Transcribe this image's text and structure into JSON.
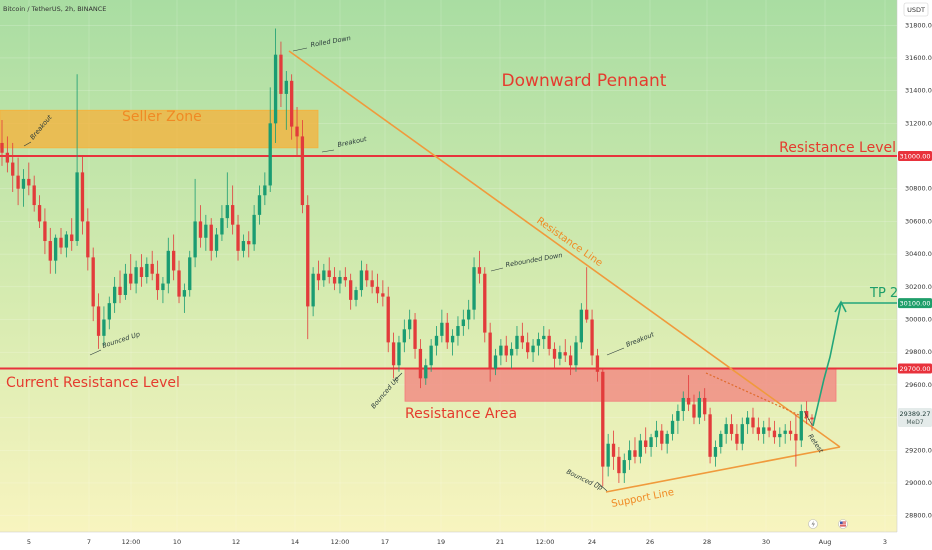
{
  "header": {
    "symbol_line": "Bitcoin / TetherUS, 2h, BINANCE",
    "currency": "USDT"
  },
  "price_tag": {
    "price": "29389.27",
    "countdown": "MeD7"
  },
  "chart_data": {
    "type": "candlestick",
    "x_ticks": [
      "5",
      "7",
      "12:00",
      "10",
      "12",
      "14",
      "12:00",
      "17",
      "19",
      "21",
      "12:00",
      "24",
      "26",
      "28",
      "30",
      "Aug",
      "3"
    ],
    "y_ticks": [
      28800,
      29000,
      29200,
      29400,
      29600,
      29800,
      30000,
      30200,
      30400,
      30600,
      30800,
      31000,
      31200,
      31400,
      31600,
      31800
    ],
    "ylim": [
      28700,
      31930
    ],
    "levels": [
      {
        "name": "Resistance Level",
        "price": 31000,
        "tag": "31000.00",
        "color": "#e8323c"
      },
      {
        "name": "Current Resistance Level",
        "price": 29700,
        "tag": "29700.00",
        "color": "#e8323c"
      },
      {
        "name": "TP 2",
        "price": 30100,
        "tag": "30100.00",
        "color": "#1e9e6a"
      }
    ],
    "zones": [
      {
        "label": "Seller Zone",
        "from": 31050,
        "to": 31280,
        "color": "#f5b23c"
      },
      {
        "label": "Resistance Area",
        "from": 29500,
        "to": 29700,
        "color": "#f47b7b"
      }
    ],
    "title": "Downward Pennant",
    "line_labels": [
      "Resistance Line",
      "Support Line"
    ],
    "annotations": [
      "Breakout",
      "Breakout",
      "Rolled Down",
      "Bounced Up",
      "Rebounded Down",
      "Bounced Up",
      "Breakout",
      "Bounced Up",
      "Retest"
    ],
    "candles": [
      {
        "o": 31080,
        "h": 31220,
        "l": 30940,
        "c": 31020
      },
      {
        "o": 31020,
        "h": 31120,
        "l": 30900,
        "c": 30960
      },
      {
        "o": 30960,
        "h": 31080,
        "l": 30780,
        "c": 30880
      },
      {
        "o": 30880,
        "h": 30990,
        "l": 30700,
        "c": 30800
      },
      {
        "o": 30800,
        "h": 30920,
        "l": 30690,
        "c": 30860
      },
      {
        "o": 30860,
        "h": 30960,
        "l": 30760,
        "c": 30820
      },
      {
        "o": 30820,
        "h": 30880,
        "l": 30660,
        "c": 30700
      },
      {
        "o": 30700,
        "h": 30760,
        "l": 30560,
        "c": 30600
      },
      {
        "o": 30600,
        "h": 30680,
        "l": 30400,
        "c": 30480
      },
      {
        "o": 30480,
        "h": 30560,
        "l": 30280,
        "c": 30360
      },
      {
        "o": 30360,
        "h": 30520,
        "l": 30280,
        "c": 30500
      },
      {
        "o": 30500,
        "h": 30560,
        "l": 30400,
        "c": 30440
      },
      {
        "o": 30440,
        "h": 30540,
        "l": 30380,
        "c": 30520
      },
      {
        "o": 30520,
        "h": 30620,
        "l": 30420,
        "c": 30480
      },
      {
        "o": 30480,
        "h": 31500,
        "l": 30450,
        "c": 30900
      },
      {
        "o": 30900,
        "h": 31000,
        "l": 30520,
        "c": 30600
      },
      {
        "o": 30600,
        "h": 30680,
        "l": 30300,
        "c": 30380
      },
      {
        "o": 30380,
        "h": 30440,
        "l": 29990,
        "c": 30080
      },
      {
        "o": 30080,
        "h": 30160,
        "l": 29820,
        "c": 29900
      },
      {
        "o": 29900,
        "h": 30080,
        "l": 29840,
        "c": 30000
      },
      {
        "o": 30000,
        "h": 30140,
        "l": 29940,
        "c": 30100
      },
      {
        "o": 30100,
        "h": 30260,
        "l": 30040,
        "c": 30200
      },
      {
        "o": 30200,
        "h": 30300,
        "l": 30100,
        "c": 30150
      },
      {
        "o": 30150,
        "h": 30340,
        "l": 30120,
        "c": 30280
      },
      {
        "o": 30280,
        "h": 30400,
        "l": 30180,
        "c": 30220
      },
      {
        "o": 30220,
        "h": 30360,
        "l": 30160,
        "c": 30320
      },
      {
        "o": 30320,
        "h": 30400,
        "l": 30200,
        "c": 30260
      },
      {
        "o": 30260,
        "h": 30380,
        "l": 30220,
        "c": 30340
      },
      {
        "o": 30340,
        "h": 30420,
        "l": 30240,
        "c": 30280
      },
      {
        "o": 30280,
        "h": 30360,
        "l": 30120,
        "c": 30180
      },
      {
        "o": 30180,
        "h": 30260,
        "l": 30100,
        "c": 30220
      },
      {
        "o": 30220,
        "h": 30500,
        "l": 30160,
        "c": 30420
      },
      {
        "o": 30420,
        "h": 30520,
        "l": 30240,
        "c": 30300
      },
      {
        "o": 30300,
        "h": 30360,
        "l": 30100,
        "c": 30140
      },
      {
        "o": 30140,
        "h": 30220,
        "l": 30040,
        "c": 30180
      },
      {
        "o": 30180,
        "h": 30420,
        "l": 30140,
        "c": 30380
      },
      {
        "o": 30380,
        "h": 30860,
        "l": 30320,
        "c": 30600
      },
      {
        "o": 30600,
        "h": 30700,
        "l": 30440,
        "c": 30500
      },
      {
        "o": 30500,
        "h": 30640,
        "l": 30420,
        "c": 30580
      },
      {
        "o": 30580,
        "h": 30620,
        "l": 30360,
        "c": 30420
      },
      {
        "o": 30420,
        "h": 30560,
        "l": 30380,
        "c": 30520
      },
      {
        "o": 30520,
        "h": 30700,
        "l": 30480,
        "c": 30620
      },
      {
        "o": 30620,
        "h": 30900,
        "l": 30560,
        "c": 30700
      },
      {
        "o": 30700,
        "h": 30820,
        "l": 30520,
        "c": 30580
      },
      {
        "o": 30580,
        "h": 30640,
        "l": 30360,
        "c": 30420
      },
      {
        "o": 30420,
        "h": 30520,
        "l": 30380,
        "c": 30480
      },
      {
        "o": 30480,
        "h": 30540,
        "l": 30380,
        "c": 30460
      },
      {
        "o": 30460,
        "h": 30700,
        "l": 30420,
        "c": 30640
      },
      {
        "o": 30640,
        "h": 30820,
        "l": 30580,
        "c": 30760
      },
      {
        "o": 30760,
        "h": 30900,
        "l": 30700,
        "c": 30820
      },
      {
        "o": 30820,
        "h": 31420,
        "l": 30780,
        "c": 31200
      },
      {
        "o": 31200,
        "h": 31780,
        "l": 31080,
        "c": 31620
      },
      {
        "o": 31620,
        "h": 31700,
        "l": 31300,
        "c": 31380
      },
      {
        "o": 31380,
        "h": 31520,
        "l": 31160,
        "c": 31460
      },
      {
        "o": 31460,
        "h": 31500,
        "l": 31100,
        "c": 31180
      },
      {
        "o": 31180,
        "h": 31300,
        "l": 31000,
        "c": 31120
      },
      {
        "o": 31120,
        "h": 31220,
        "l": 30650,
        "c": 30700
      },
      {
        "o": 30700,
        "h": 30760,
        "l": 29880,
        "c": 30080
      },
      {
        "o": 30080,
        "h": 30320,
        "l": 30020,
        "c": 30280
      },
      {
        "o": 30280,
        "h": 30360,
        "l": 30180,
        "c": 30240
      },
      {
        "o": 30240,
        "h": 30340,
        "l": 30200,
        "c": 30300
      },
      {
        "o": 30300,
        "h": 30380,
        "l": 30220,
        "c": 30260
      },
      {
        "o": 30260,
        "h": 30320,
        "l": 30180,
        "c": 30220
      },
      {
        "o": 30220,
        "h": 30300,
        "l": 30160,
        "c": 30260
      },
      {
        "o": 30260,
        "h": 30320,
        "l": 30200,
        "c": 30240
      },
      {
        "o": 30240,
        "h": 30280,
        "l": 30060,
        "c": 30120
      },
      {
        "o": 30120,
        "h": 30200,
        "l": 30080,
        "c": 30180
      },
      {
        "o": 30180,
        "h": 30360,
        "l": 30140,
        "c": 30300
      },
      {
        "o": 30300,
        "h": 30340,
        "l": 30200,
        "c": 30240
      },
      {
        "o": 30240,
        "h": 30300,
        "l": 30160,
        "c": 30200
      },
      {
        "o": 30200,
        "h": 30280,
        "l": 30100,
        "c": 30160
      },
      {
        "o": 30160,
        "h": 30240,
        "l": 30080,
        "c": 30140
      },
      {
        "o": 30140,
        "h": 30200,
        "l": 29800,
        "c": 29860
      },
      {
        "o": 29860,
        "h": 29920,
        "l": 29640,
        "c": 29720
      },
      {
        "o": 29720,
        "h": 29900,
        "l": 29680,
        "c": 29860
      },
      {
        "o": 29860,
        "h": 30000,
        "l": 29800,
        "c": 29940
      },
      {
        "o": 29940,
        "h": 30060,
        "l": 29880,
        "c": 30000
      },
      {
        "o": 30000,
        "h": 30040,
        "l": 29760,
        "c": 29820
      },
      {
        "o": 29820,
        "h": 29880,
        "l": 29580,
        "c": 29640
      },
      {
        "o": 29640,
        "h": 29760,
        "l": 29600,
        "c": 29720
      },
      {
        "o": 29720,
        "h": 29880,
        "l": 29680,
        "c": 29840
      },
      {
        "o": 29840,
        "h": 29960,
        "l": 29780,
        "c": 29900
      },
      {
        "o": 29900,
        "h": 30060,
        "l": 29860,
        "c": 29980
      },
      {
        "o": 29980,
        "h": 30040,
        "l": 29820,
        "c": 29860
      },
      {
        "o": 29860,
        "h": 29940,
        "l": 29780,
        "c": 29900
      },
      {
        "o": 29900,
        "h": 30020,
        "l": 29840,
        "c": 29960
      },
      {
        "o": 29960,
        "h": 30060,
        "l": 29900,
        "c": 30000
      },
      {
        "o": 30000,
        "h": 30120,
        "l": 29940,
        "c": 30060
      },
      {
        "o": 30060,
        "h": 30380,
        "l": 30000,
        "c": 30320
      },
      {
        "o": 30320,
        "h": 30420,
        "l": 30220,
        "c": 30280
      },
      {
        "o": 30280,
        "h": 30320,
        "l": 29860,
        "c": 29920
      },
      {
        "o": 29920,
        "h": 29980,
        "l": 29620,
        "c": 29700
      },
      {
        "o": 29700,
        "h": 29820,
        "l": 29660,
        "c": 29780
      },
      {
        "o": 29780,
        "h": 29880,
        "l": 29720,
        "c": 29840
      },
      {
        "o": 29840,
        "h": 29900,
        "l": 29740,
        "c": 29780
      },
      {
        "o": 29780,
        "h": 29860,
        "l": 29700,
        "c": 29820
      },
      {
        "o": 29820,
        "h": 29960,
        "l": 29780,
        "c": 29900
      },
      {
        "o": 29900,
        "h": 29980,
        "l": 29820,
        "c": 29860
      },
      {
        "o": 29860,
        "h": 29920,
        "l": 29760,
        "c": 29800
      },
      {
        "o": 29800,
        "h": 29880,
        "l": 29740,
        "c": 29840
      },
      {
        "o": 29840,
        "h": 29920,
        "l": 29780,
        "c": 29880
      },
      {
        "o": 29880,
        "h": 29960,
        "l": 29820,
        "c": 29900
      },
      {
        "o": 29900,
        "h": 29940,
        "l": 29780,
        "c": 29820
      },
      {
        "o": 29820,
        "h": 29860,
        "l": 29700,
        "c": 29760
      },
      {
        "o": 29760,
        "h": 29840,
        "l": 29720,
        "c": 29800
      },
      {
        "o": 29800,
        "h": 29880,
        "l": 29740,
        "c": 29780
      },
      {
        "o": 29780,
        "h": 29840,
        "l": 29660,
        "c": 29720
      },
      {
        "o": 29720,
        "h": 29900,
        "l": 29680,
        "c": 29860
      },
      {
        "o": 29860,
        "h": 30100,
        "l": 29820,
        "c": 30060
      },
      {
        "o": 30060,
        "h": 30320,
        "l": 29980,
        "c": 30000
      },
      {
        "o": 30000,
        "h": 30060,
        "l": 29720,
        "c": 29780
      },
      {
        "o": 29780,
        "h": 29820,
        "l": 29620,
        "c": 29680
      },
      {
        "o": 29680,
        "h": 29700,
        "l": 28980,
        "c": 29100
      },
      {
        "o": 29100,
        "h": 29300,
        "l": 29040,
        "c": 29240
      },
      {
        "o": 29240,
        "h": 29320,
        "l": 29080,
        "c": 29160
      },
      {
        "o": 29160,
        "h": 29220,
        "l": 29000,
        "c": 29060
      },
      {
        "o": 29060,
        "h": 29180,
        "l": 29000,
        "c": 29140
      },
      {
        "o": 29140,
        "h": 29260,
        "l": 29080,
        "c": 29200
      },
      {
        "o": 29200,
        "h": 29280,
        "l": 29120,
        "c": 29160
      },
      {
        "o": 29160,
        "h": 29300,
        "l": 29120,
        "c": 29260
      },
      {
        "o": 29260,
        "h": 29340,
        "l": 29180,
        "c": 29220
      },
      {
        "o": 29220,
        "h": 29300,
        "l": 29160,
        "c": 29280
      },
      {
        "o": 29280,
        "h": 29380,
        "l": 29220,
        "c": 29320
      },
      {
        "o": 29320,
        "h": 29360,
        "l": 29200,
        "c": 29240
      },
      {
        "o": 29240,
        "h": 29320,
        "l": 29180,
        "c": 29300
      },
      {
        "o": 29300,
        "h": 29420,
        "l": 29260,
        "c": 29380
      },
      {
        "o": 29380,
        "h": 29480,
        "l": 29300,
        "c": 29440
      },
      {
        "o": 29440,
        "h": 29560,
        "l": 29380,
        "c": 29520
      },
      {
        "o": 29520,
        "h": 29660,
        "l": 29440,
        "c": 29480
      },
      {
        "o": 29480,
        "h": 29540,
        "l": 29360,
        "c": 29400
      },
      {
        "o": 29400,
        "h": 29560,
        "l": 29360,
        "c": 29520
      },
      {
        "o": 29520,
        "h": 29580,
        "l": 29380,
        "c": 29420
      },
      {
        "o": 29420,
        "h": 29460,
        "l": 29120,
        "c": 29160
      },
      {
        "o": 29160,
        "h": 29260,
        "l": 29100,
        "c": 29220
      },
      {
        "o": 29220,
        "h": 29320,
        "l": 29180,
        "c": 29300
      },
      {
        "o": 29300,
        "h": 29400,
        "l": 29240,
        "c": 29360
      },
      {
        "o": 29360,
        "h": 29420,
        "l": 29260,
        "c": 29300
      },
      {
        "o": 29300,
        "h": 29360,
        "l": 29200,
        "c": 29240
      },
      {
        "o": 29240,
        "h": 29400,
        "l": 29200,
        "c": 29360
      },
      {
        "o": 29360,
        "h": 29440,
        "l": 29300,
        "c": 29400
      },
      {
        "o": 29400,
        "h": 29460,
        "l": 29300,
        "c": 29340
      },
      {
        "o": 29340,
        "h": 29400,
        "l": 29260,
        "c": 29300
      },
      {
        "o": 29300,
        "h": 29380,
        "l": 29240,
        "c": 29340
      },
      {
        "o": 29340,
        "h": 29400,
        "l": 29280,
        "c": 29320
      },
      {
        "o": 29320,
        "h": 29380,
        "l": 29240,
        "c": 29280
      },
      {
        "o": 29280,
        "h": 29340,
        "l": 29220,
        "c": 29300
      },
      {
        "o": 29300,
        "h": 29360,
        "l": 29240,
        "c": 29320
      },
      {
        "o": 29320,
        "h": 29380,
        "l": 29260,
        "c": 29300
      },
      {
        "o": 29300,
        "h": 29420,
        "l": 29100,
        "c": 29260
      },
      {
        "o": 29260,
        "h": 29480,
        "l": 29220,
        "c": 29440
      },
      {
        "o": 29440,
        "h": 29500,
        "l": 29360,
        "c": 29400
      },
      {
        "o": 29400,
        "h": 29420,
        "l": 29320,
        "c": 29389
      }
    ]
  }
}
